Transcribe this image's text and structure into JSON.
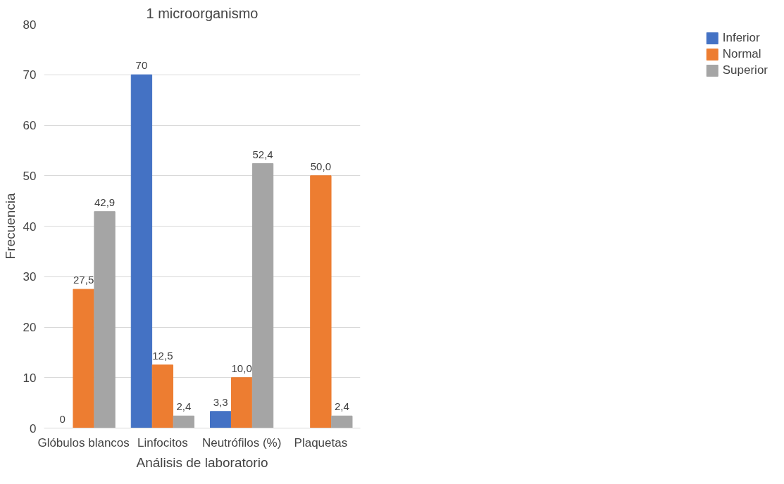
{
  "chart_data": {
    "type": "bar",
    "title": "1 microorganismo",
    "xlabel": "Análisis de laboratorio",
    "ylabel": "Frecuencia",
    "categories": [
      "Glóbulos blancos",
      "Linfocitos",
      "Neutrófilos (%)",
      "Plaquetas"
    ],
    "series": [
      {
        "name": "Inferior",
        "color": "#4472c4",
        "values": [
          0,
          70,
          3.3,
          null
        ],
        "value_labels": [
          "0",
          "70",
          "3,3",
          null
        ]
      },
      {
        "name": "Normal",
        "color": "#ed7d31",
        "values": [
          27.5,
          12.5,
          10.0,
          50.0
        ],
        "value_labels": [
          "27,5",
          "12,5",
          "10,0",
          "50,0"
        ]
      },
      {
        "name": "Superior",
        "color": "#a5a5a5",
        "values": [
          42.9,
          2.4,
          52.4,
          2.4
        ],
        "value_labels": [
          "42,9",
          "2,4",
          "52,4",
          "2,4"
        ]
      }
    ],
    "ylim": [
      0,
      80
    ],
    "yticks": [
      0,
      10,
      20,
      30,
      40,
      50,
      60,
      70,
      80
    ],
    "grid": "y",
    "legend": "right"
  }
}
